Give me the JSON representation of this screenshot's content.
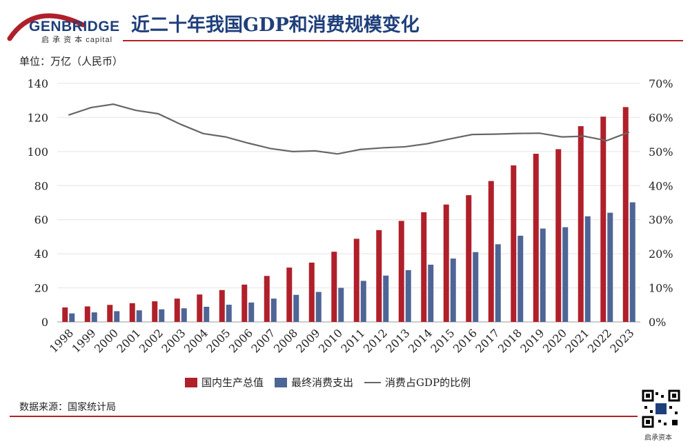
{
  "header": {
    "logo_name": "GENBRIDGE",
    "logo_sub": "启 承 资 本  capital",
    "title": "近二十年我国GDP和消费规模变化"
  },
  "unit_label": "单位：万亿（人民币）",
  "source_label": "数据来源：国家统计局",
  "qr_label": "启承资本",
  "colors": {
    "gdp": "#b0202a",
    "consumption": "#4e6596",
    "ratio": "#666666",
    "accent": "#b0202a",
    "title": "#1f3f7a"
  },
  "chart_data": {
    "type": "bar",
    "categories": [
      "1998",
      "1999",
      "2000",
      "2001",
      "2002",
      "2003",
      "2004",
      "2005",
      "2006",
      "2007",
      "2008",
      "2009",
      "2010",
      "2011",
      "2012",
      "2013",
      "2014",
      "2015",
      "2016",
      "2017",
      "2018",
      "2019",
      "2020",
      "2021",
      "2022",
      "2023"
    ],
    "series": [
      {
        "name": "国内生产总值",
        "type": "bar",
        "axis": "left",
        "values": [
          8.5,
          9.1,
          10.0,
          11.0,
          12.1,
          13.7,
          16.1,
          18.7,
          21.9,
          27.0,
          31.9,
          34.8,
          41.2,
          48.8,
          53.9,
          59.3,
          64.4,
          68.9,
          74.4,
          82.7,
          91.9,
          98.7,
          101.4,
          114.9,
          120.5,
          126.1
        ]
      },
      {
        "name": "最终消费支出",
        "type": "bar",
        "axis": "left",
        "values": [
          5.0,
          5.6,
          6.3,
          6.8,
          7.4,
          8.0,
          8.9,
          10.1,
          11.4,
          13.7,
          15.9,
          17.6,
          20.0,
          24.1,
          27.2,
          30.4,
          33.6,
          37.2,
          41.0,
          45.6,
          50.6,
          54.8,
          55.6,
          62.0,
          64.1,
          70.2
        ]
      },
      {
        "name": "消费占GDP的比例",
        "type": "line",
        "axis": "right",
        "values": [
          60.7,
          62.9,
          63.9,
          62.1,
          61.1,
          58.0,
          55.3,
          54.3,
          52.5,
          50.9,
          50.0,
          50.2,
          49.3,
          50.6,
          51.1,
          51.4,
          52.3,
          53.7,
          55.0,
          55.1,
          55.3,
          55.4,
          54.3,
          54.5,
          53.2,
          55.7
        ]
      }
    ],
    "y_left": {
      "min": 0,
      "max": 140,
      "ticks": [
        "0",
        "20",
        "40",
        "60",
        "80",
        "100",
        "120",
        "140"
      ]
    },
    "y_right": {
      "min": 0,
      "max": 70,
      "ticks": [
        "0%",
        "10%",
        "20%",
        "30%",
        "40%",
        "50%",
        "60%",
        "70%"
      ]
    },
    "grid": true,
    "legend_position": "bottom"
  }
}
